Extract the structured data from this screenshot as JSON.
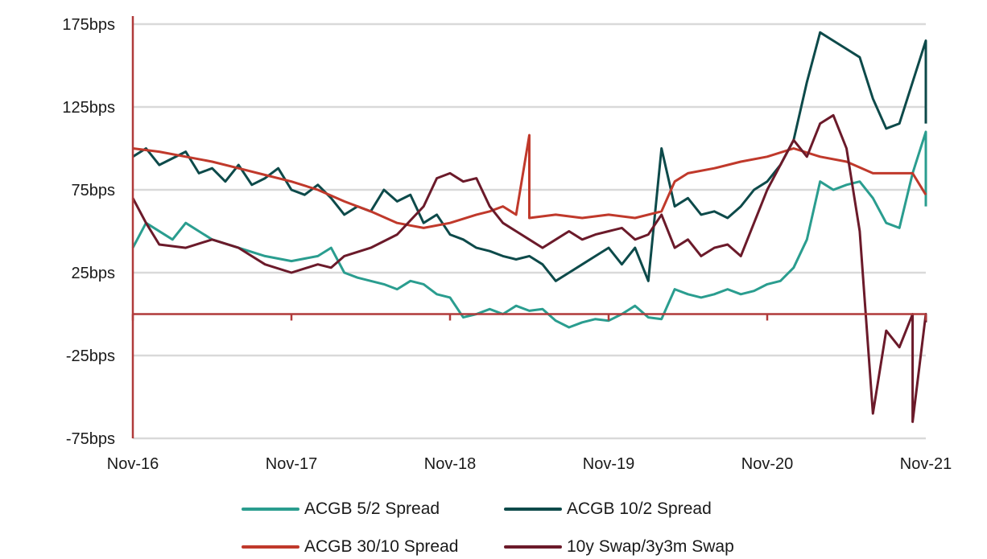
{
  "chart_data": {
    "type": "line",
    "title": "",
    "xlabel": "",
    "ylabel": "",
    "x_ticks": [
      "Nov-16",
      "Nov-17",
      "Nov-18",
      "Nov-19",
      "Nov-20",
      "Nov-21"
    ],
    "y_ticks": [
      "175bps",
      "125bps",
      "75bps",
      "25bps",
      "-25bps",
      "-75bps"
    ],
    "y_tick_values": [
      175,
      125,
      75,
      25,
      -25,
      -75
    ],
    "ylim": [
      -75,
      175
    ],
    "grid": true,
    "legend_position": "bottom",
    "series": [
      {
        "name": "ACGB 5/2 Spread",
        "color": "#2a9d8f",
        "points": [
          [
            "Nov-16",
            40
          ],
          [
            "Dec-16",
            55
          ],
          [
            "Feb-17",
            45
          ],
          [
            "Mar-17",
            55
          ],
          [
            "May-17",
            45
          ],
          [
            "Jul-17",
            40
          ],
          [
            "Sep-17",
            35
          ],
          [
            "Nov-17",
            32
          ],
          [
            "Jan-18",
            35
          ],
          [
            "Feb-18",
            40
          ],
          [
            "Mar-18",
            25
          ],
          [
            "Apr-18",
            22
          ],
          [
            "Jun-18",
            18
          ],
          [
            "Jul-18",
            15
          ],
          [
            "Aug-18",
            20
          ],
          [
            "Sep-18",
            18
          ],
          [
            "Oct-18",
            12
          ],
          [
            "Nov-18",
            10
          ],
          [
            "Dec-18",
            -2
          ],
          [
            "Jan-19",
            0
          ],
          [
            "Feb-19",
            3
          ],
          [
            "Mar-19",
            0
          ],
          [
            "Apr-19",
            5
          ],
          [
            "May-19",
            2
          ],
          [
            "Jun-19",
            3
          ],
          [
            "Jul-19",
            -4
          ],
          [
            "Aug-19",
            -8
          ],
          [
            "Sep-19",
            -5
          ],
          [
            "Oct-19",
            -3
          ],
          [
            "Nov-19",
            -4
          ],
          [
            "Dec-19",
            0
          ],
          [
            "Jan-20",
            5
          ],
          [
            "Feb-20",
            -2
          ],
          [
            "Mar-20",
            -3
          ],
          [
            "Apr-20",
            15
          ],
          [
            "May-20",
            12
          ],
          [
            "Jun-20",
            10
          ],
          [
            "Jul-20",
            12
          ],
          [
            "Aug-20",
            15
          ],
          [
            "Sep-20",
            12
          ],
          [
            "Oct-20",
            14
          ],
          [
            "Nov-20",
            18
          ],
          [
            "Dec-20",
            20
          ],
          [
            "Jan-21",
            28
          ],
          [
            "Feb-21",
            45
          ],
          [
            "Mar-21",
            80
          ],
          [
            "Apr-21",
            75
          ],
          [
            "May-21",
            78
          ],
          [
            "Jun-21",
            80
          ],
          [
            "Jul-21",
            70
          ],
          [
            "Aug-21",
            55
          ],
          [
            "Sep-21",
            52
          ],
          [
            "Oct-21",
            85
          ],
          [
            "Nov-21",
            110
          ],
          [
            "Nov-21",
            65
          ]
        ]
      },
      {
        "name": "ACGB 10/2 Spread",
        "color": "#0d4a4a",
        "points": [
          [
            "Nov-16",
            95
          ],
          [
            "Dec-16",
            100
          ],
          [
            "Jan-17",
            90
          ],
          [
            "Mar-17",
            98
          ],
          [
            "Apr-17",
            85
          ],
          [
            "May-17",
            88
          ],
          [
            "Jun-17",
            80
          ],
          [
            "Jul-17",
            90
          ],
          [
            "Aug-17",
            78
          ],
          [
            "Sep-17",
            82
          ],
          [
            "Oct-17",
            88
          ],
          [
            "Nov-17",
            75
          ],
          [
            "Dec-17",
            72
          ],
          [
            "Jan-18",
            78
          ],
          [
            "Feb-18",
            70
          ],
          [
            "Mar-18",
            60
          ],
          [
            "Apr-18",
            65
          ],
          [
            "May-18",
            62
          ],
          [
            "Jun-18",
            75
          ],
          [
            "Jul-18",
            68
          ],
          [
            "Aug-18",
            72
          ],
          [
            "Sep-18",
            55
          ],
          [
            "Oct-18",
            60
          ],
          [
            "Nov-18",
            48
          ],
          [
            "Dec-18",
            45
          ],
          [
            "Jan-19",
            40
          ],
          [
            "Feb-19",
            38
          ],
          [
            "Mar-19",
            35
          ],
          [
            "Apr-19",
            33
          ],
          [
            "May-19",
            35
          ],
          [
            "Jun-19",
            30
          ],
          [
            "Jul-19",
            20
          ],
          [
            "Aug-19",
            25
          ],
          [
            "Sep-19",
            30
          ],
          [
            "Oct-19",
            35
          ],
          [
            "Nov-19",
            40
          ],
          [
            "Dec-19",
            30
          ],
          [
            "Jan-20",
            40
          ],
          [
            "Feb-20",
            20
          ],
          [
            "Mar-20",
            100
          ],
          [
            "Apr-20",
            65
          ],
          [
            "May-20",
            70
          ],
          [
            "Jun-20",
            60
          ],
          [
            "Jul-20",
            62
          ],
          [
            "Aug-20",
            58
          ],
          [
            "Sep-20",
            65
          ],
          [
            "Oct-20",
            75
          ],
          [
            "Nov-20",
            80
          ],
          [
            "Dec-20",
            90
          ],
          [
            "Jan-21",
            105
          ],
          [
            "Feb-21",
            140
          ],
          [
            "Mar-21",
            170
          ],
          [
            "Apr-21",
            165
          ],
          [
            "May-21",
            160
          ],
          [
            "Jun-21",
            155
          ],
          [
            "Jul-21",
            130
          ],
          [
            "Aug-21",
            112
          ],
          [
            "Sep-21",
            115
          ],
          [
            "Oct-21",
            140
          ],
          [
            "Nov-21",
            165
          ],
          [
            "Nov-21",
            115
          ]
        ]
      },
      {
        "name": "ACGB 30/10 Spread",
        "color": "#c0392b",
        "points": [
          [
            "Nov-16",
            100
          ],
          [
            "Jan-17",
            98
          ],
          [
            "Mar-17",
            95
          ],
          [
            "May-17",
            92
          ],
          [
            "Jul-17",
            88
          ],
          [
            "Sep-17",
            84
          ],
          [
            "Nov-17",
            80
          ],
          [
            "Jan-18",
            75
          ],
          [
            "Mar-18",
            68
          ],
          [
            "May-18",
            62
          ],
          [
            "Jul-18",
            55
          ],
          [
            "Sep-18",
            52
          ],
          [
            "Nov-18",
            55
          ],
          [
            "Jan-19",
            60
          ],
          [
            "Feb-19",
            62
          ],
          [
            "Mar-19",
            65
          ],
          [
            "Apr-19",
            60
          ],
          [
            "May-19",
            108
          ],
          [
            "May-19",
            58
          ],
          [
            "Jul-19",
            60
          ],
          [
            "Sep-19",
            58
          ],
          [
            "Nov-19",
            60
          ],
          [
            "Jan-20",
            58
          ],
          [
            "Mar-20",
            62
          ],
          [
            "Apr-20",
            80
          ],
          [
            "May-20",
            85
          ],
          [
            "Jul-20",
            88
          ],
          [
            "Sep-20",
            92
          ],
          [
            "Nov-20",
            95
          ],
          [
            "Jan-21",
            100
          ],
          [
            "Mar-21",
            95
          ],
          [
            "May-21",
            92
          ],
          [
            "Jul-21",
            85
          ],
          [
            "Sep-21",
            85
          ],
          [
            "Oct-21",
            85
          ],
          [
            "Nov-21",
            72
          ]
        ]
      },
      {
        "name": "10y Swap/3y3m Swap",
        "color": "#6b1a2a",
        "points": [
          [
            "Nov-16",
            70
          ],
          [
            "Dec-16",
            55
          ],
          [
            "Jan-17",
            42
          ],
          [
            "Mar-17",
            40
          ],
          [
            "May-17",
            45
          ],
          [
            "Jul-17",
            40
          ],
          [
            "Sep-17",
            30
          ],
          [
            "Nov-17",
            25
          ],
          [
            "Jan-18",
            30
          ],
          [
            "Feb-18",
            28
          ],
          [
            "Mar-18",
            35
          ],
          [
            "May-18",
            40
          ],
          [
            "Jul-18",
            48
          ],
          [
            "Sep-18",
            65
          ],
          [
            "Oct-18",
            82
          ],
          [
            "Nov-18",
            85
          ],
          [
            "Dec-18",
            80
          ],
          [
            "Jan-19",
            82
          ],
          [
            "Feb-19",
            65
          ],
          [
            "Mar-19",
            55
          ],
          [
            "Apr-19",
            50
          ],
          [
            "May-19",
            45
          ],
          [
            "Jun-19",
            40
          ],
          [
            "Jul-19",
            45
          ],
          [
            "Aug-19",
            50
          ],
          [
            "Sep-19",
            45
          ],
          [
            "Oct-19",
            48
          ],
          [
            "Nov-19",
            50
          ],
          [
            "Dec-19",
            52
          ],
          [
            "Jan-20",
            45
          ],
          [
            "Feb-20",
            48
          ],
          [
            "Mar-20",
            60
          ],
          [
            "Apr-20",
            40
          ],
          [
            "May-20",
            45
          ],
          [
            "Jun-20",
            35
          ],
          [
            "Jul-20",
            40
          ],
          [
            "Aug-20",
            42
          ],
          [
            "Sep-20",
            35
          ],
          [
            "Oct-20",
            55
          ],
          [
            "Nov-20",
            75
          ],
          [
            "Dec-20",
            90
          ],
          [
            "Jan-21",
            105
          ],
          [
            "Feb-21",
            95
          ],
          [
            "Mar-21",
            115
          ],
          [
            "Apr-21",
            120
          ],
          [
            "May-21",
            100
          ],
          [
            "Jun-21",
            50
          ],
          [
            "Jul-21",
            -60
          ],
          [
            "Aug-21",
            -10
          ],
          [
            "Sep-21",
            -20
          ],
          [
            "Oct-21",
            0
          ],
          [
            "Oct-21",
            -65
          ],
          [
            "Nov-21",
            0
          ],
          [
            "Nov-21",
            -5
          ]
        ]
      }
    ]
  }
}
